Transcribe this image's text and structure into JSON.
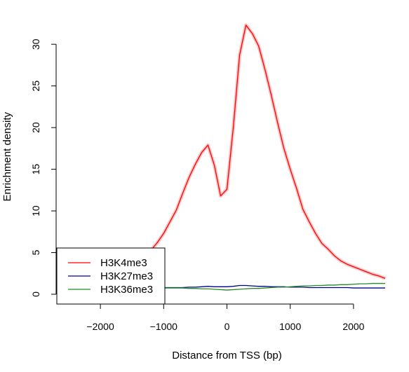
{
  "chart_data": {
    "type": "line",
    "title": "",
    "xlabel": "Distance from TSS (bp)",
    "ylabel": "Enrichment density",
    "xlim": [
      -2500,
      2500
    ],
    "ylim": [
      0,
      33
    ],
    "xticks": [
      -2000,
      -1000,
      0,
      1000,
      2000
    ],
    "xtick_labels": [
      "−2000",
      "−1000",
      "0",
      "1000",
      "2000"
    ],
    "yticks": [
      0,
      5,
      10,
      15,
      20,
      25,
      30
    ],
    "ytick_labels": [
      "0",
      "5",
      "10",
      "15",
      "20",
      "25",
      "30"
    ],
    "grid": false,
    "legend": "bottom-left",
    "x": [
      -2500,
      -2400,
      -2300,
      -2200,
      -2100,
      -2000,
      -1900,
      -1800,
      -1700,
      -1600,
      -1500,
      -1400,
      -1300,
      -1200,
      -1100,
      -1000,
      -900,
      -800,
      -700,
      -600,
      -500,
      -400,
      -300,
      -200,
      -100,
      0,
      100,
      200,
      300,
      400,
      500,
      600,
      700,
      800,
      900,
      1000,
      1100,
      1200,
      1300,
      1400,
      1500,
      1600,
      1700,
      1800,
      1900,
      2000,
      2100,
      2200,
      2300,
      2400,
      2500
    ],
    "series": [
      {
        "name": "H3K4me3",
        "color": "#ff0000",
        "values": [
          1.6,
          1.6,
          1.8,
          1.8,
          1.9,
          2.0,
          2.2,
          2.4,
          2.7,
          3.0,
          3.4,
          3.9,
          4.5,
          5.3,
          6.2,
          7.3,
          8.7,
          10.1,
          12.1,
          14.0,
          15.6,
          17.0,
          17.9,
          15.5,
          11.8,
          12.6,
          20.0,
          28.7,
          32.3,
          31.3,
          29.8,
          27.0,
          23.9,
          20.6,
          17.5,
          15.0,
          12.7,
          10.2,
          8.7,
          7.3,
          6.1,
          5.4,
          4.6,
          4.0,
          3.6,
          3.3,
          3.0,
          2.7,
          2.4,
          2.2,
          1.9
        ]
      },
      {
        "name": "H3K27me3",
        "color": "#00008b",
        "values": [
          0.8,
          0.8,
          0.8,
          0.8,
          0.8,
          0.8,
          0.8,
          0.8,
          0.8,
          0.8,
          0.8,
          0.8,
          0.8,
          0.8,
          0.8,
          0.8,
          0.8,
          0.8,
          0.8,
          0.85,
          0.85,
          0.9,
          0.95,
          0.9,
          0.9,
          0.9,
          0.95,
          1.05,
          1.05,
          1.0,
          0.95,
          0.95,
          0.9,
          0.9,
          0.9,
          0.85,
          0.85,
          0.85,
          0.8,
          0.8,
          0.8,
          0.8,
          0.8,
          0.8,
          0.8,
          0.75,
          0.75,
          0.75,
          0.75,
          0.75,
          0.75
        ]
      },
      {
        "name": "H3K36me3",
        "color": "#228b22",
        "values": [
          0.4,
          0.45,
          0.5,
          0.5,
          0.55,
          0.55,
          0.6,
          0.6,
          0.65,
          0.65,
          0.7,
          0.7,
          0.7,
          0.75,
          0.75,
          0.75,
          0.75,
          0.75,
          0.75,
          0.7,
          0.7,
          0.65,
          0.65,
          0.6,
          0.55,
          0.5,
          0.55,
          0.6,
          0.65,
          0.7,
          0.7,
          0.75,
          0.8,
          0.85,
          0.85,
          0.9,
          0.95,
          1.0,
          1.0,
          1.05,
          1.05,
          1.1,
          1.1,
          1.15,
          1.15,
          1.2,
          1.25,
          1.25,
          1.3,
          1.3,
          1.3
        ]
      }
    ]
  }
}
